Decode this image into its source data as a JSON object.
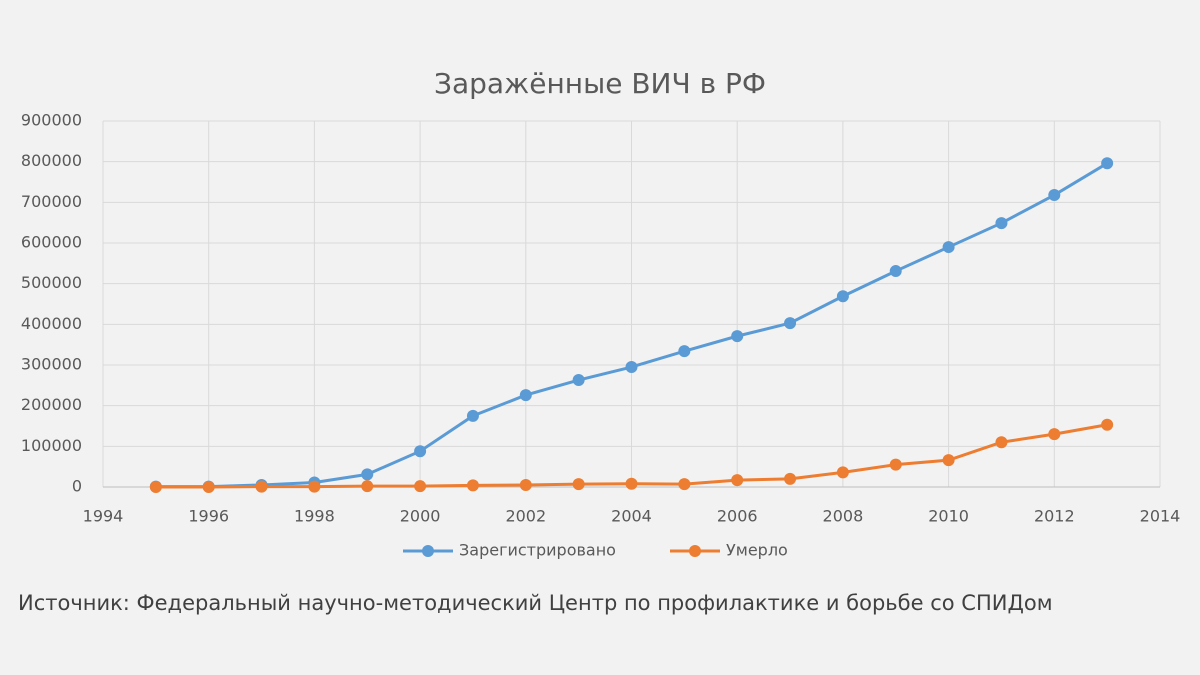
{
  "chart_data": {
    "type": "line",
    "title": "Заражённые ВИЧ в РФ",
    "source": "Источник: Федеральный научно-методический Центр по профилактике и борьбе со СПИДом",
    "x": [
      1995,
      1996,
      1997,
      1998,
      1999,
      2000,
      2001,
      2002,
      2003,
      2004,
      2005,
      2006,
      2007,
      2008,
      2009,
      2010,
      2011,
      2012,
      2013
    ],
    "series": [
      {
        "name": "Зарегистрировано",
        "color": "#5b9bd5",
        "values": [
          1000,
          1000,
          5000,
          11000,
          31000,
          88000,
          175000,
          226000,
          263000,
          295000,
          334000,
          371000,
          403000,
          469000,
          531000,
          590000,
          649000,
          718000,
          796000
        ]
      },
      {
        "name": "Умерло",
        "color": "#ed7d31",
        "values": [
          0,
          0,
          1000,
          1000,
          2000,
          2000,
          4000,
          5000,
          7000,
          8000,
          7000,
          17000,
          20000,
          36000,
          55000,
          66000,
          110000,
          130000,
          153000
        ]
      }
    ],
    "xlim": [
      1994,
      2014
    ],
    "xticks": [
      1994,
      1996,
      1998,
      2000,
      2002,
      2004,
      2006,
      2008,
      2010,
      2012,
      2014
    ],
    "ylim": [
      0,
      900000
    ],
    "yticks": [
      0,
      100000,
      200000,
      300000,
      400000,
      500000,
      600000,
      700000,
      800000,
      900000
    ],
    "grid": true
  }
}
